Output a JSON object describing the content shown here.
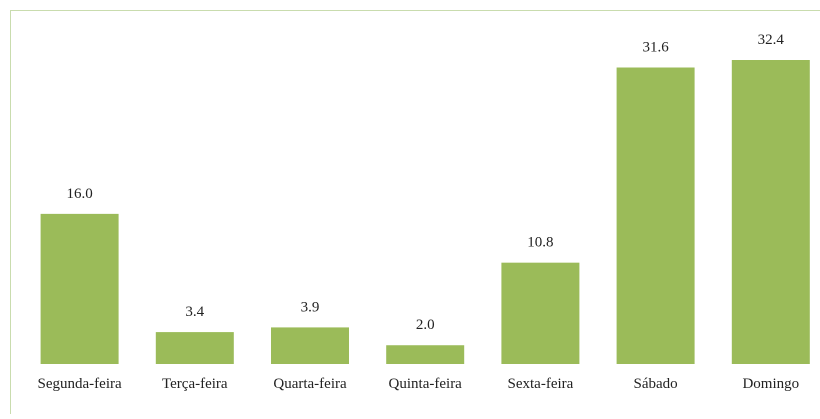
{
  "chart_data": {
    "type": "bar",
    "categories": [
      "Segunda-feira",
      "Terça-feira",
      "Quarta-feira",
      "Quinta-feira",
      "Sexta-feira",
      "Sábado",
      "Domingo"
    ],
    "values": [
      16,
      3.4,
      3.9,
      2,
      10.8,
      31.6,
      32.4
    ],
    "value_labels": [
      "16.0",
      "3.4",
      "3.9",
      "2.0",
      "10.8",
      "31.6",
      "32.4"
    ],
    "color": "#9bbb59"
  }
}
